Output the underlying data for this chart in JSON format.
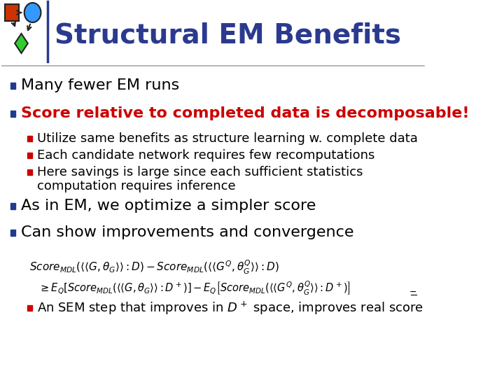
{
  "title": "Structural EM Benefits",
  "title_color": "#2B3A8F",
  "title_fontsize": 28,
  "background_color": "#FFFFFF",
  "bullet_color": "#1F3A8F",
  "bullet_red_color": "#CC0000",
  "bullet0": "Many fewer EM runs",
  "bullet0_color": "#000000",
  "bullet1": "Score relative to completed data is decomposable!",
  "bullet1_color": "#CC0000",
  "sub1": "Utilize same benefits as structure learning w. complete data",
  "sub2": "Each candidate network requires few recomputations",
  "sub3a": "Here savings is large since each sufficient statistics",
  "sub3b": "computation requires inference",
  "bullet2": "As in EM, we optimize a simpler score",
  "bullet2_color": "#000000",
  "bullet3": "Can show improvements and convergence",
  "bullet3_color": "#000000",
  "last_bullet_a": "An SEM step that improves in D",
  "last_bullet_b": " space, improves real score",
  "header_line_color": "#AAAAAA",
  "vert_line_color": "#2B3A8F",
  "icon_sq_color": "#CC3300",
  "icon_circle_color": "#3399FF",
  "icon_diamond_color": "#33CC33",
  "sub_color": "#000000",
  "formula_color": "#000000"
}
